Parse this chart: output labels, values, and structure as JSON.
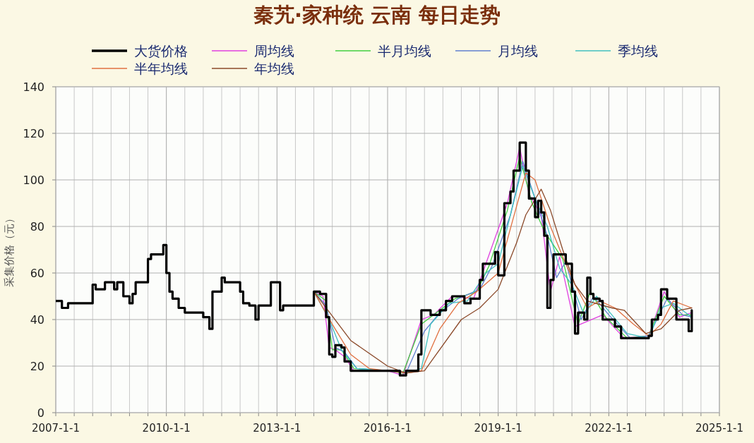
{
  "chart_data": {
    "type": "line",
    "title": "秦艽·家种统 云南 每日走势",
    "ylabel": "采集价格（元）",
    "legend": "top",
    "grid": true,
    "marker": "none",
    "xlim": [
      "2007-01-01",
      "2025-01-01"
    ],
    "ylim": [
      0,
      140
    ],
    "yticks": [
      0,
      20,
      40,
      60,
      80,
      100,
      120,
      140
    ],
    "xticks": [
      {
        "value": "2007-01-01",
        "label": "2007-1-1"
      },
      {
        "value": "2007-07-01",
        "label": null
      },
      {
        "value": "2008-01-01",
        "label": null
      },
      {
        "value": "2008-07-01",
        "label": null
      },
      {
        "value": "2009-01-01",
        "label": null
      },
      {
        "value": "2009-07-01",
        "label": null
      },
      {
        "value": "2010-01-01",
        "label": "2010-1-1"
      },
      {
        "value": "2010-07-01",
        "label": null
      },
      {
        "value": "2011-01-01",
        "label": null
      },
      {
        "value": "2011-07-01",
        "label": null
      },
      {
        "value": "2012-01-01",
        "label": null
      },
      {
        "value": "2012-07-01",
        "label": null
      },
      {
        "value": "2013-01-01",
        "label": "2013-1-1"
      },
      {
        "value": "2013-07-01",
        "label": null
      },
      {
        "value": "2014-01-01",
        "label": null
      },
      {
        "value": "2014-07-01",
        "label": null
      },
      {
        "value": "2015-01-01",
        "label": null
      },
      {
        "value": "2015-07-01",
        "label": null
      },
      {
        "value": "2016-01-01",
        "label": "2016-1-1"
      },
      {
        "value": "2016-07-01",
        "label": null
      },
      {
        "value": "2017-01-01",
        "label": null
      },
      {
        "value": "2017-07-01",
        "label": null
      },
      {
        "value": "2018-01-01",
        "label": null
      },
      {
        "value": "2018-07-01",
        "label": null
      },
      {
        "value": "2019-01-01",
        "label": "2019-1-1"
      },
      {
        "value": "2019-07-01",
        "label": null
      },
      {
        "value": "2020-01-01",
        "label": null
      },
      {
        "value": "2020-07-01",
        "label": null
      },
      {
        "value": "2021-01-01",
        "label": null
      },
      {
        "value": "2021-07-01",
        "label": null
      },
      {
        "value": "2022-01-01",
        "label": "2022-1-1"
      },
      {
        "value": "2022-07-01",
        "label": null
      },
      {
        "value": "2023-01-01",
        "label": null
      },
      {
        "value": "2023-07-01",
        "label": null
      },
      {
        "value": "2024-01-01",
        "label": null
      },
      {
        "value": "2024-07-01",
        "label": null
      },
      {
        "value": "2025-01-01",
        "label": "2025-1-1"
      }
    ],
    "series": [
      {
        "name": "大货价格",
        "type": "step",
        "color": "#000000",
        "x": [
          "2007-01",
          "2007-03",
          "2007-05",
          "2007-07",
          "2008-01",
          "2008-02",
          "2008-05",
          "2008-08",
          "2008-09",
          "2008-11",
          "2009-01",
          "2009-02",
          "2009-03",
          "2009-07",
          "2009-08",
          "2009-12",
          "2010-01",
          "2010-02",
          "2010-03",
          "2010-05",
          "2010-07",
          "2011-01",
          "2011-03",
          "2011-04",
          "2011-07",
          "2011-08",
          "2012-01",
          "2012-02",
          "2012-04",
          "2012-06",
          "2012-07",
          "2012-11",
          "2013-02",
          "2013-03",
          "2014-01",
          "2014-03",
          "2014-05",
          "2014-06",
          "2014-07",
          "2014-08",
          "2014-10",
          "2014-11",
          "2015-01",
          "2016-01",
          "2016-05",
          "2016-07",
          "2016-11",
          "2016-12",
          "2017-03",
          "2017-06",
          "2017-08",
          "2017-10",
          "2018-02",
          "2018-04",
          "2018-07",
          "2018-08",
          "2018-12",
          "2019-01",
          "2019-03",
          "2019-05",
          "2019-06",
          "2019-08",
          "2019-10",
          "2019-11",
          "2020-01",
          "2020-02",
          "2020-03",
          "2020-04",
          "2020-05",
          "2020-06",
          "2020-07",
          "2020-11",
          "2021-01",
          "2021-02",
          "2021-03",
          "2021-05",
          "2021-06",
          "2021-07",
          "2021-08",
          "2021-10",
          "2021-11",
          "2022-03",
          "2022-05",
          "2023-02",
          "2023-03",
          "2023-05",
          "2023-06",
          "2023-08",
          "2023-11",
          "2024-02",
          "2024-03",
          "2024-04"
        ],
        "values": [
          48,
          45,
          47,
          47,
          55,
          53,
          56,
          53,
          56,
          50,
          47,
          51,
          56,
          66,
          68,
          72,
          60,
          52,
          49,
          45,
          43,
          41,
          36,
          52,
          58,
          56,
          52,
          47,
          46,
          40,
          46,
          56,
          44,
          46,
          52,
          51,
          41,
          25,
          24,
          29,
          28,
          22,
          18,
          18,
          16,
          18,
          25,
          44,
          42,
          44,
          48,
          50,
          47,
          49,
          57,
          64,
          69,
          59,
          90,
          95,
          104,
          116,
          104,
          92,
          84,
          91,
          86,
          76,
          45,
          57,
          68,
          64,
          52,
          34,
          43,
          40,
          58,
          51,
          49,
          48,
          40,
          37,
          32,
          33,
          40,
          42,
          53,
          49,
          40,
          40,
          35,
          44
        ]
      },
      {
        "name": "周均线",
        "type": "line",
        "color": "#e040e0",
        "x": [
          "2014-01",
          "2014-04",
          "2014-06",
          "2014-08",
          "2014-11",
          "2015-02",
          "2016-01",
          "2016-06",
          "2016-12",
          "2017-04",
          "2017-10",
          "2018-05",
          "2018-09",
          "2019-04",
          "2019-08",
          "2019-11",
          "2020-03",
          "2020-06",
          "2020-09",
          "2021-02",
          "2021-06",
          "2021-11",
          "2022-06",
          "2023-02",
          "2023-07",
          "2023-12",
          "2024-04"
        ],
        "values": [
          52,
          50,
          28,
          27,
          24,
          18,
          18,
          16,
          40,
          42,
          50,
          49,
          64,
          90,
          114,
          94,
          85,
          52,
          67,
          37,
          null,
          42,
          32,
          33,
          52,
          41,
          43
        ]
      },
      {
        "name": "半月均线",
        "type": "line",
        "color": "#40d040",
        "x": [
          "2014-01",
          "2014-05",
          "2014-07",
          "2014-10",
          "2015-02",
          "2016-01",
          "2016-06",
          "2016-12",
          "2017-05",
          "2017-11",
          "2018-06",
          "2018-10",
          "2019-04",
          "2019-08",
          "2019-12",
          "2020-04",
          "2020-07",
          "2020-10",
          "2021-03",
          "2021-07",
          "2021-12",
          "2022-07",
          "2023-02",
          "2023-07",
          "2023-12",
          "2024-04"
        ],
        "values": [
          52,
          48,
          27,
          27,
          19,
          18,
          17,
          38,
          43,
          49,
          52,
          63,
          87,
          110,
          90,
          78,
          null,
          66,
          38,
          52,
          41,
          32,
          33,
          50,
          42,
          42
        ]
      },
      {
        "name": "月均线",
        "type": "line",
        "color": "#6080d0",
        "x": [
          "2014-01",
          "2014-05",
          "2014-08",
          "2014-11",
          "2015-03",
          "2016-01",
          "2016-07",
          "2017-01",
          "2017-06",
          "2017-12",
          "2018-07",
          "2018-11",
          "2019-05",
          "2019-09",
          "2020-01",
          "2020-05",
          "2020-08",
          "2020-11",
          "2021-04",
          "2021-08",
          "2022-01",
          "2022-08",
          "2023-02",
          "2023-08",
          "2024-01",
          "2024-04"
        ],
        "values": [
          52,
          46,
          28,
          26,
          19,
          18,
          17,
          35,
          43,
          49,
          53,
          63,
          85,
          108,
          92,
          76,
          58,
          65,
          40,
          50,
          42,
          32,
          33,
          49,
          42,
          41
        ]
      },
      {
        "name": "季均线",
        "type": "line",
        "color": "#40c0c0",
        "x": [
          "2014-01",
          "2014-06",
          "2014-10",
          "2015-03",
          "2016-01",
          "2016-07",
          "2016-12",
          "2017-03",
          "2017-09",
          "2018-03",
          "2018-09",
          "2019-01",
          "2019-05",
          "2019-09",
          "2020-01",
          "2020-05",
          "2020-09",
          "2021-01",
          "2021-05",
          "2021-09",
          "2022-02",
          "2022-07",
          "2023-02",
          "2023-06",
          "2023-10",
          "2024-04"
        ],
        "values": [
          52,
          40,
          27,
          19,
          18,
          17,
          19,
          38,
          47,
          48,
          60,
          64,
          85,
          106,
          92,
          80,
          62,
          55,
          42,
          50,
          42,
          34,
          32,
          45,
          47,
          41
        ]
      },
      {
        "name": "半年均线",
        "type": "line",
        "color": "#e07040",
        "x": [
          "2014-01",
          "2014-07",
          "2015-01",
          "2015-07",
          "2016-01",
          "2016-07",
          "2016-12",
          "2017-06",
          "2017-12",
          "2018-06",
          "2019-01",
          "2019-06",
          "2019-10",
          "2020-01",
          "2020-06",
          "2020-10",
          "2021-02",
          "2021-06",
          "2021-10",
          "2022-03",
          "2022-09",
          "2023-02",
          "2023-06",
          "2023-10",
          "2024-04"
        ],
        "values": [
          52,
          38,
          25,
          19,
          18,
          17,
          18,
          36,
          47,
          52,
          60,
          84,
          103,
          100,
          80,
          67,
          55,
          45,
          48,
          45,
          38,
          33,
          38,
          48,
          45
        ]
      },
      {
        "name": "年均线",
        "type": "line",
        "color": "#8b4a2a",
        "x": [
          "2014-01",
          "2015-01",
          "2016-01",
          "2016-07",
          "2017-01",
          "2018-01",
          "2018-07",
          "2019-01",
          "2019-07",
          "2019-10",
          "2020-03",
          "2020-06",
          "2020-10",
          "2021-02",
          "2021-06",
          "2022-02",
          "2022-06",
          "2023-01",
          "2023-06",
          "2023-12",
          "2024-04"
        ],
        "values": [
          52,
          31,
          20,
          17,
          18,
          40,
          45,
          53,
          73,
          85,
          96,
          87,
          70,
          55,
          48,
          45,
          44,
          34,
          36,
          44,
          45
        ]
      }
    ]
  }
}
